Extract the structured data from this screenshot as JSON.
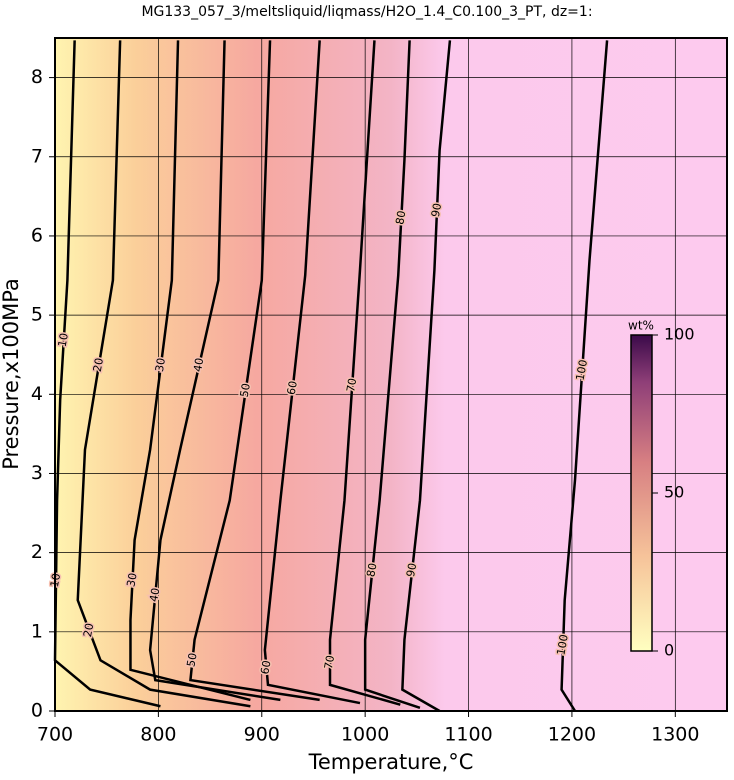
{
  "chart_data": {
    "type": "contour",
    "title": "MG133_057_3/meltsliquid/liqmass/H2O_1.4_C0.100_3_PT, dz=1:",
    "x_label": "Temperature,°C",
    "y_label": "Pressure,x100MPa",
    "xlim": [
      700,
      1350
    ],
    "ylim": [
      0,
      8.5
    ],
    "xticks": [
      700,
      800,
      900,
      1000,
      1100,
      1200,
      1300
    ],
    "yticks": [
      0,
      1,
      2,
      3,
      4,
      5,
      6,
      7,
      8
    ],
    "grid": true,
    "colorbar": {
      "label": "wt%",
      "lim": [
        0,
        100
      ],
      "ticks": [
        0,
        50,
        100
      ]
    },
    "contours": [
      {
        "level": 10,
        "x": [
          719,
          712,
          705,
          702,
          700,
          734,
          802
        ],
        "y": [
          8.47,
          5.44,
          3.93,
          2.66,
          0.64,
          0.27,
          0.06
        ]
      },
      {
        "level": 20,
        "x": [
          763,
          756,
          729,
          722,
          744,
          792,
          889
        ],
        "y": [
          8.47,
          5.44,
          3.3,
          1.4,
          0.64,
          0.27,
          0.06
        ]
      },
      {
        "level": 30,
        "x": [
          819,
          813,
          792,
          777,
          773,
          773,
          889
        ],
        "y": [
          8.47,
          5.44,
          3.3,
          2.16,
          1.15,
          0.52,
          0.14
        ]
      },
      {
        "level": 40,
        "x": [
          864,
          858,
          821,
          802,
          792,
          797,
          918
        ],
        "y": [
          8.47,
          5.44,
          3.3,
          2.16,
          0.77,
          0.39,
          0.14
        ]
      },
      {
        "level": 50,
        "x": [
          908,
          900,
          869,
          835,
          831,
          956
        ],
        "y": [
          8.47,
          5.44,
          2.66,
          0.9,
          0.39,
          0.14
        ]
      },
      {
        "level": 60,
        "x": [
          956,
          942,
          918,
          903,
          906,
          995
        ],
        "y": [
          8.47,
          5.5,
          2.66,
          0.77,
          0.33,
          0.1
        ]
      },
      {
        "level": 70,
        "x": [
          1009,
          995,
          980,
          966,
          966,
          1034
        ],
        "y": [
          8.47,
          5.57,
          2.66,
          0.9,
          0.33,
          0.08
        ]
      },
      {
        "level": 80,
        "x": [
          1043,
          1038,
          1032,
          1014,
          1000,
          1000,
          1053
        ],
        "y": [
          8.47,
          6.96,
          5.5,
          2.66,
          0.9,
          0.27,
          0.04
        ]
      },
      {
        "level": 90,
        "x": [
          1082,
          1072,
          1067,
          1053,
          1038,
          1036,
          1072
        ],
        "y": [
          8.47,
          7.08,
          5.57,
          2.66,
          0.9,
          0.27,
          0
        ]
      },
      {
        "level": 100,
        "x": [
          1234,
          1217,
          1203,
          1193,
          1190,
          1203
        ],
        "y": [
          8.47,
          5.69,
          2.92,
          1.4,
          0.27,
          0
        ]
      }
    ]
  }
}
